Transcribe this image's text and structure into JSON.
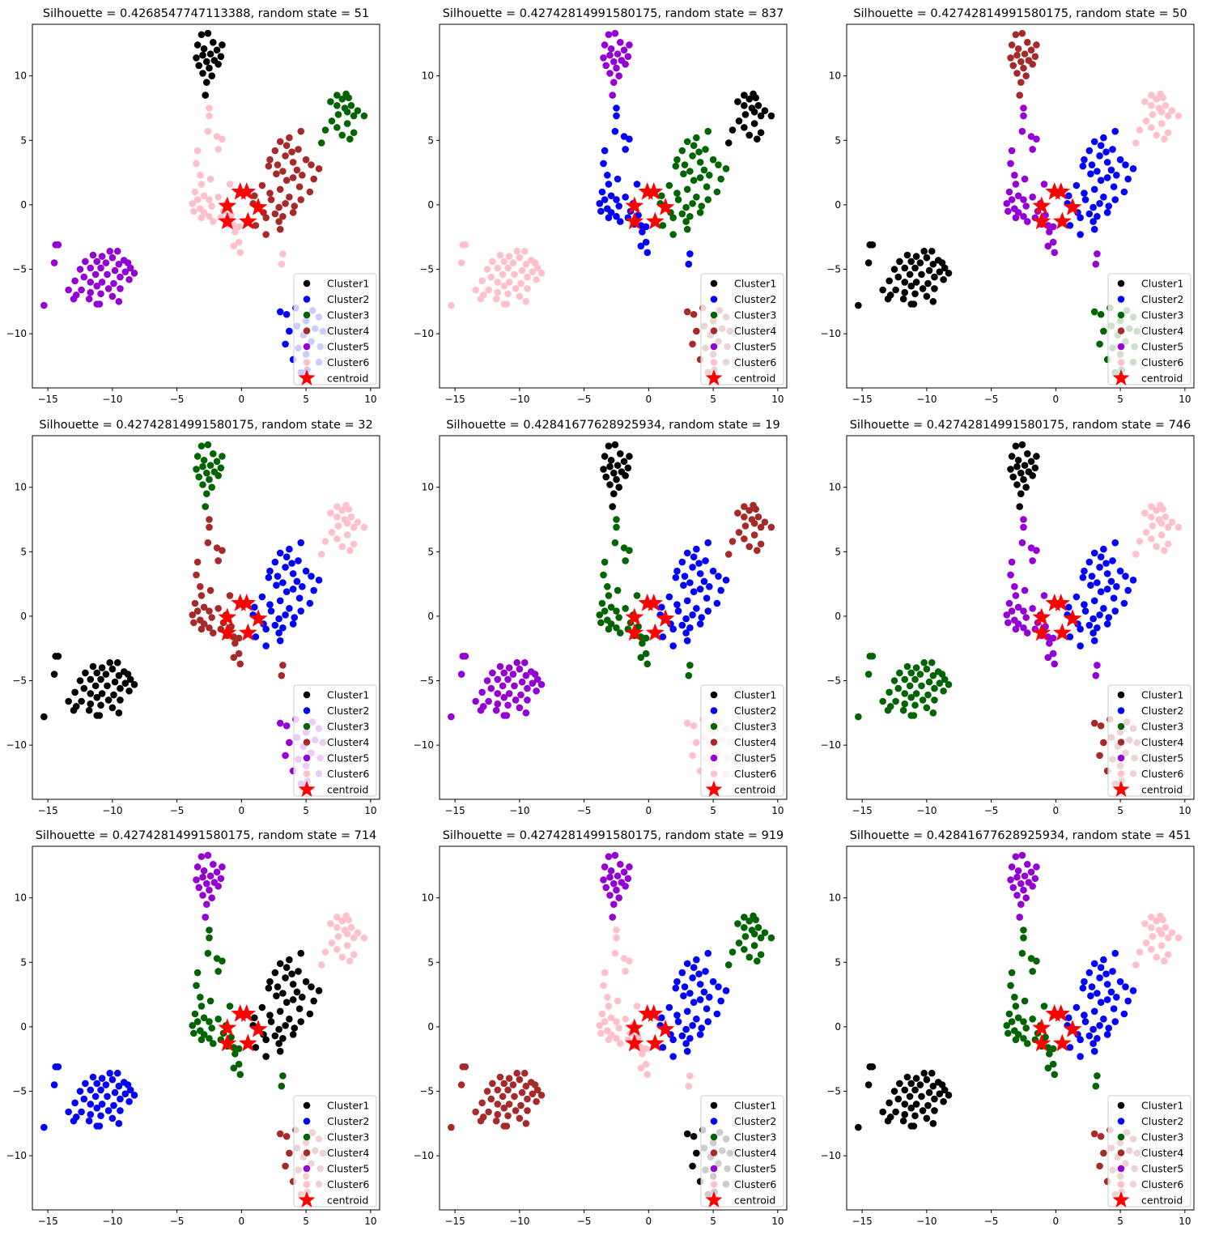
{
  "colors": {
    "Cluster1": "#000000",
    "Cluster2": "#0000ff",
    "Cluster3": "#006400",
    "Cluster4": "#a52a2a",
    "Cluster5": "#9400d3",
    "Cluster6": "#ffc0cb",
    "centroid": "#ff0000"
  },
  "legend_labels": [
    "Cluster1",
    "Cluster2",
    "Cluster3",
    "Cluster4",
    "Cluster5",
    "Cluster6",
    "centroid"
  ],
  "chart_data": [
    {
      "type": "scatter",
      "title": "Silhouette = 0.4268547747113388, random state = 51",
      "xlim": [
        -16.2,
        10.7
      ],
      "ylim": [
        -14.2,
        14.0
      ],
      "xticks": [
        -15,
        -10,
        -5,
        0,
        5,
        10
      ],
      "yticks": [
        10,
        5,
        0,
        -5,
        -10
      ],
      "legend_position": "lower right",
      "group_colors": {
        "A": "Cluster1",
        "B": "Cluster6",
        "C": "Cluster3",
        "D": "Cluster4",
        "E": "Cluster6",
        "F": "Cluster5",
        "G": "Cluster2"
      }
    },
    {
      "type": "scatter",
      "title": "Silhouette = 0.42742814991580175, random state = 837",
      "xlim": [
        -16.2,
        10.7
      ],
      "ylim": [
        -14.2,
        14.0
      ],
      "xticks": [
        -15,
        -10,
        -5,
        0,
        5,
        10
      ],
      "yticks": [
        10,
        5,
        0,
        -5,
        -10
      ],
      "legend_position": "lower right",
      "group_colors": {
        "A": "Cluster5",
        "B": "Cluster2",
        "C": "Cluster1",
        "D": "Cluster3",
        "E": "Cluster2",
        "F": "Cluster6",
        "G": "Cluster4"
      }
    },
    {
      "type": "scatter",
      "title": "Silhouette = 0.42742814991580175, random state = 50",
      "xlim": [
        -16.2,
        10.7
      ],
      "ylim": [
        -14.2,
        14.0
      ],
      "xticks": [
        -15,
        -10,
        -5,
        0,
        5,
        10
      ],
      "yticks": [
        10,
        5,
        0,
        -5,
        -10
      ],
      "legend_position": "lower right",
      "group_colors": {
        "A": "Cluster4",
        "B": "Cluster5",
        "C": "Cluster6",
        "D": "Cluster2",
        "E": "Cluster5",
        "F": "Cluster1",
        "G": "Cluster3"
      }
    },
    {
      "type": "scatter",
      "title": "Silhouette = 0.42742814991580175, random state = 32",
      "xlim": [
        -16.2,
        10.7
      ],
      "ylim": [
        -14.2,
        14.0
      ],
      "xticks": [
        -15,
        -10,
        -5,
        0,
        5,
        10
      ],
      "yticks": [
        10,
        5,
        0,
        -5,
        -10
      ],
      "legend_position": "lower right",
      "group_colors": {
        "A": "Cluster3",
        "B": "Cluster4",
        "C": "Cluster6",
        "D": "Cluster2",
        "E": "Cluster4",
        "F": "Cluster1",
        "G": "Cluster5"
      }
    },
    {
      "type": "scatter",
      "title": "Silhouette = 0.42841677628925934, random state = 19",
      "xlim": [
        -16.2,
        10.7
      ],
      "ylim": [
        -14.2,
        14.0
      ],
      "xticks": [
        -15,
        -10,
        -5,
        0,
        5,
        10
      ],
      "yticks": [
        10,
        5,
        0,
        -5,
        -10
      ],
      "legend_position": "lower right",
      "group_colors": {
        "A": "Cluster1",
        "B": "Cluster3",
        "C": "Cluster4",
        "D": "Cluster2",
        "E": "Cluster3",
        "F": "Cluster5",
        "G": "Cluster6"
      }
    },
    {
      "type": "scatter",
      "title": "Silhouette = 0.42742814991580175, random state = 746",
      "xlim": [
        -16.2,
        10.7
      ],
      "ylim": [
        -14.2,
        14.0
      ],
      "xticks": [
        -15,
        -10,
        -5,
        0,
        5,
        10
      ],
      "yticks": [
        10,
        5,
        0,
        -5,
        -10
      ],
      "legend_position": "lower right",
      "group_colors": {
        "A": "Cluster1",
        "B": "Cluster5",
        "C": "Cluster6",
        "D": "Cluster2",
        "E": "Cluster5",
        "F": "Cluster3",
        "G": "Cluster4"
      }
    },
    {
      "type": "scatter",
      "title": "Silhouette = 0.42742814991580175, random state = 714",
      "xlim": [
        -16.2,
        10.7
      ],
      "ylim": [
        -14.2,
        14.0
      ],
      "xticks": [
        -15,
        -10,
        -5,
        0,
        5,
        10
      ],
      "yticks": [
        10,
        5,
        0,
        -5,
        -10
      ],
      "legend_position": "lower right",
      "group_colors": {
        "A": "Cluster5",
        "B": "Cluster3",
        "C": "Cluster6",
        "D": "Cluster1",
        "E": "Cluster3",
        "F": "Cluster2",
        "G": "Cluster4"
      }
    },
    {
      "type": "scatter",
      "title": "Silhouette = 0.42742814991580175, random state = 919",
      "xlim": [
        -16.2,
        10.7
      ],
      "ylim": [
        -14.2,
        14.0
      ],
      "xticks": [
        -15,
        -10,
        -5,
        0,
        5,
        10
      ],
      "yticks": [
        10,
        5,
        0,
        -5,
        -10
      ],
      "legend_position": "lower right",
      "group_colors": {
        "A": "Cluster5",
        "B": "Cluster6",
        "C": "Cluster3",
        "D": "Cluster2",
        "E": "Cluster6",
        "F": "Cluster4",
        "G": "Cluster1"
      }
    },
    {
      "type": "scatter",
      "title": "Silhouette = 0.42841677628925934, random state = 451",
      "xlim": [
        -16.2,
        10.7
      ],
      "ylim": [
        -14.2,
        14.0
      ],
      "xticks": [
        -15,
        -10,
        -5,
        0,
        5,
        10
      ],
      "yticks": [
        10,
        5,
        0,
        -5,
        -10
      ],
      "legend_position": "lower right",
      "group_colors": {
        "A": "Cluster5",
        "B": "Cluster3",
        "C": "Cluster6",
        "D": "Cluster2",
        "E": "Cluster3",
        "F": "Cluster1",
        "G": "Cluster4"
      }
    }
  ],
  "shared_points": {
    "A": [
      [
        -3.1,
        13.2
      ],
      [
        -2.6,
        13.3
      ],
      [
        -2.2,
        12.6
      ],
      [
        -3.4,
        12.4
      ],
      [
        -2.9,
        12.1
      ],
      [
        -1.5,
        12.4
      ],
      [
        -3.0,
        11.6
      ],
      [
        -2.4,
        11.7
      ],
      [
        -1.9,
        12.0
      ],
      [
        -3.5,
        11.4
      ],
      [
        -2.7,
        11.1
      ],
      [
        -2.1,
        11.2
      ],
      [
        -1.6,
        11.5
      ],
      [
        -3.3,
        10.8
      ],
      [
        -2.5,
        10.6
      ],
      [
        -1.8,
        10.9
      ],
      [
        -3.0,
        10.2
      ],
      [
        -2.3,
        10.0
      ],
      [
        -2.7,
        9.5
      ],
      [
        -2.8,
        8.5
      ]
    ],
    "B": [
      [
        -2.5,
        7.5
      ],
      [
        -2.5,
        6.9
      ],
      [
        -2.6,
        5.7
      ],
      [
        -1.9,
        5.3
      ],
      [
        -1.5,
        5.1
      ],
      [
        -3.4,
        4.2
      ],
      [
        -1.8,
        4.3
      ],
      [
        -3.5,
        3.2
      ],
      [
        -3.2,
        2.3
      ],
      [
        -2.4,
        2.0
      ],
      [
        -3.1,
        1.6
      ],
      [
        -0.9,
        1.6
      ],
      [
        -3.6,
        1.0
      ],
      [
        -2.9,
        0.7
      ],
      [
        -1.8,
        0.6
      ],
      [
        -3.4,
        0.4
      ],
      [
        -2.5,
        0.4
      ],
      [
        -1.2,
        0.1
      ],
      [
        -3.8,
        0.1
      ],
      [
        -3.2,
        -0.3
      ],
      [
        -2.3,
        -0.1
      ],
      [
        -1.4,
        -0.5
      ],
      [
        -3.7,
        -0.5
      ],
      [
        -2.9,
        -0.6
      ],
      [
        -0.8,
        -0.8
      ],
      [
        -2.5,
        -0.9
      ],
      [
        -1.6,
        -1.0
      ],
      [
        -3.1,
        -1.0
      ],
      [
        -2.2,
        -1.3
      ],
      [
        -1.1,
        -1.5
      ],
      [
        -0.6,
        -1.6
      ],
      [
        -0.2,
        -1.7
      ],
      [
        -0.5,
        -2.1
      ],
      [
        -0.2,
        -2.9
      ],
      [
        -0.6,
        -3.2
      ],
      [
        -0.1,
        -3.7
      ]
    ],
    "C": [
      [
        7.4,
        8.5
      ],
      [
        8.1,
        8.6
      ],
      [
        7.8,
        8.2
      ],
      [
        8.3,
        8.3
      ],
      [
        6.9,
        8.0
      ],
      [
        7.4,
        7.7
      ],
      [
        8.5,
        7.7
      ],
      [
        8.0,
        7.5
      ],
      [
        9.0,
        7.3
      ],
      [
        8.2,
        7.2
      ],
      [
        7.5,
        7.0
      ],
      [
        9.5,
        6.9
      ],
      [
        8.7,
        6.9
      ],
      [
        7.0,
        6.5
      ],
      [
        8.2,
        6.3
      ],
      [
        7.4,
        6.0
      ],
      [
        6.5,
        5.8
      ],
      [
        8.7,
        5.6
      ],
      [
        7.8,
        5.4
      ],
      [
        8.4,
        5.1
      ],
      [
        6.2,
        4.8
      ]
    ],
    "D": [
      [
        2.6,
        4.2
      ],
      [
        3.7,
        5.2
      ],
      [
        4.6,
        5.7
      ],
      [
        3.0,
        4.9
      ],
      [
        3.5,
        4.6
      ],
      [
        2.2,
        3.5
      ],
      [
        2.8,
        3.1
      ],
      [
        3.9,
        4.1
      ],
      [
        4.4,
        4.3
      ],
      [
        3.4,
        3.8
      ],
      [
        4.0,
        3.3
      ],
      [
        5.0,
        3.5
      ],
      [
        2.1,
        3.0
      ],
      [
        3.2,
        2.6
      ],
      [
        4.3,
        2.7
      ],
      [
        5.4,
        3.1
      ],
      [
        6.0,
        2.8
      ],
      [
        2.7,
        2.4
      ],
      [
        4.0,
        2.1
      ],
      [
        4.7,
        2.3
      ],
      [
        5.6,
        2.0
      ],
      [
        3.5,
        1.9
      ],
      [
        1.6,
        1.5
      ],
      [
        3.0,
        1.2
      ],
      [
        4.5,
        1.4
      ],
      [
        5.3,
        1.0
      ],
      [
        2.2,
        0.9
      ],
      [
        3.7,
        0.6
      ],
      [
        4.6,
        0.4
      ],
      [
        1.0,
        0.7
      ],
      [
        2.3,
        0.4
      ],
      [
        3.4,
        0.1
      ],
      [
        4.1,
        -0.1
      ],
      [
        0.9,
        0.1
      ],
      [
        2.9,
        -0.2
      ],
      [
        1.7,
        -0.6
      ],
      [
        2.6,
        -0.7
      ],
      [
        3.2,
        -0.9
      ],
      [
        4.0,
        -0.6
      ],
      [
        1.9,
        -1.0
      ],
      [
        2.9,
        -1.3
      ],
      [
        1.1,
        -1.6
      ],
      [
        1.9,
        -2.3
      ],
      [
        3.0,
        -1.9
      ]
    ],
    "E": [
      [
        3.2,
        -3.8
      ],
      [
        3.1,
        -4.6
      ]
    ],
    "F": [
      [
        -14.4,
        -3.1
      ],
      [
        -14.2,
        -3.1
      ],
      [
        -10.2,
        -3.6
      ],
      [
        -9.6,
        -3.6
      ],
      [
        -10.8,
        -4.0
      ],
      [
        -11.5,
        -3.9
      ],
      [
        -10.0,
        -4.1
      ],
      [
        -9.1,
        -4.3
      ],
      [
        -8.8,
        -4.5
      ],
      [
        -11.2,
        -4.4
      ],
      [
        -12.1,
        -4.4
      ],
      [
        -14.5,
        -4.5
      ],
      [
        -10.5,
        -4.5
      ],
      [
        -9.5,
        -4.6
      ],
      [
        -8.6,
        -4.9
      ],
      [
        -11.7,
        -4.9
      ],
      [
        -10.9,
        -4.9
      ],
      [
        -12.5,
        -5.0
      ],
      [
        -9.8,
        -5.1
      ],
      [
        -9.0,
        -5.2
      ],
      [
        -8.3,
        -5.3
      ],
      [
        -11.3,
        -5.4
      ],
      [
        -10.4,
        -5.4
      ],
      [
        -12.2,
        -5.6
      ],
      [
        -9.4,
        -5.6
      ],
      [
        -8.7,
        -5.8
      ],
      [
        -12.9,
        -5.9
      ],
      [
        -11.7,
        -6.0
      ],
      [
        -10.8,
        -6.0
      ],
      [
        -9.9,
        -6.1
      ],
      [
        -11.2,
        -6.3
      ],
      [
        -10.3,
        -6.5
      ],
      [
        -13.4,
        -6.6
      ],
      [
        -12.4,
        -6.6
      ],
      [
        -9.4,
        -6.5
      ],
      [
        -11.7,
        -6.8
      ],
      [
        -10.9,
        -6.9
      ],
      [
        -12.8,
        -7.0
      ],
      [
        -10.0,
        -7.1
      ],
      [
        -13.0,
        -7.3
      ],
      [
        -11.8,
        -7.3
      ],
      [
        -9.5,
        -7.5
      ],
      [
        -11.2,
        -7.7
      ],
      [
        -11.0,
        -7.7
      ],
      [
        -15.3,
        -7.8
      ]
    ],
    "G": [
      [
        3.0,
        -8.3
      ],
      [
        3.5,
        -8.5
      ],
      [
        4.2,
        -8.0
      ],
      [
        5.5,
        -8.2
      ],
      [
        6.0,
        -8.7
      ],
      [
        5.0,
        -9.0
      ],
      [
        4.3,
        -9.4
      ],
      [
        5.7,
        -9.6
      ],
      [
        3.7,
        -9.8
      ],
      [
        6.3,
        -9.8
      ],
      [
        4.8,
        -10.1
      ],
      [
        5.4,
        -10.6
      ],
      [
        3.4,
        -10.8
      ],
      [
        4.4,
        -11.1
      ],
      [
        6.1,
        -11.0
      ],
      [
        5.0,
        -11.6
      ],
      [
        4.0,
        -12.0
      ],
      [
        6.0,
        -12.2
      ],
      [
        5.1,
        -12.8
      ],
      [
        4.6,
        -13.0
      ]
    ],
    "centroids": [
      [
        -0.1,
        1.0
      ],
      [
        0.4,
        1.0
      ],
      [
        -1.1,
        -0.1
      ],
      [
        1.3,
        -0.2
      ],
      [
        -1.1,
        -1.3
      ],
      [
        0.5,
        -1.3
      ]
    ]
  }
}
